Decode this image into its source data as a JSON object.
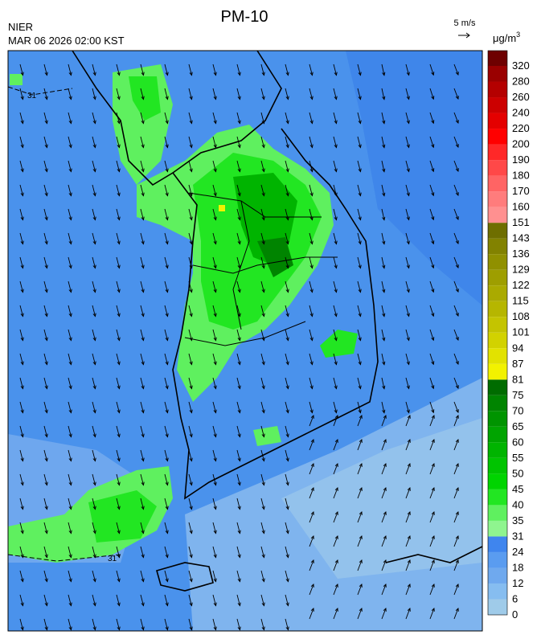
{
  "header": {
    "title": "PM-10",
    "agency": "NIER",
    "timestamp": "MAR 06 2026 02:00 KST",
    "wind_scale": "5 m/s"
  },
  "map": {
    "contour_labels": [
      "31",
      "31"
    ]
  },
  "legend": {
    "unit": "μg/m",
    "unit_power": "3",
    "ticks": [
      0,
      6,
      12,
      18,
      24,
      31,
      35,
      40,
      45,
      50,
      55,
      60,
      65,
      70,
      75,
      81,
      87,
      94,
      101,
      108,
      115,
      122,
      129,
      136,
      143,
      151,
      160,
      170,
      180,
      190,
      200,
      220,
      240,
      260,
      280,
      320
    ],
    "colors": [
      "#9fcbe9",
      "#86bdf0",
      "#6fa9ee",
      "#5a9cf0",
      "#3f85ee",
      "#8ff58f",
      "#5ff05f",
      "#22e622",
      "#00d400",
      "#00c400",
      "#00b400",
      "#00a400",
      "#009400",
      "#008400",
      "#006c00",
      "#f2f200",
      "#e2e200",
      "#d2d200",
      "#c4c400",
      "#b6b600",
      "#aaaa00",
      "#9e9e00",
      "#909000",
      "#828200",
      "#6e6e00",
      "#ff9090",
      "#ff7c7c",
      "#ff6464",
      "#ff4848",
      "#ff2828",
      "#ff0000",
      "#e40000",
      "#cc0000",
      "#b40000",
      "#9a0000",
      "#6e0000"
    ]
  }
}
